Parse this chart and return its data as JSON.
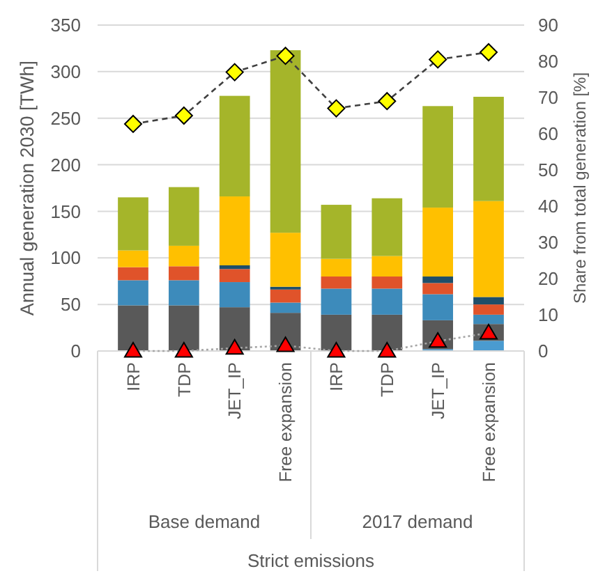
{
  "chart_data": {
    "type": "bar",
    "stacked": true,
    "ylabel": "Annual generation 2030 [TWh]",
    "y2label": "Share from total generation [%]",
    "categories": [
      "IRP",
      "TDP",
      "JET_IP",
      "Free expansion",
      "IRP",
      "TDP",
      "JET_IP",
      "Free expansion"
    ],
    "annotations": [
      "Base demand",
      "2017 demand",
      "Strict emissions"
    ],
    "ylim": [
      0,
      350
    ],
    "yticks": [
      0,
      50,
      100,
      150,
      200,
      250,
      300,
      350
    ],
    "y2lim": [
      0,
      90
    ],
    "y2ticks": [
      0,
      10,
      20,
      30,
      40,
      50,
      60,
      70,
      80,
      90
    ],
    "grid": "y",
    "series": [
      {
        "color": "#4a9bd0",
        "values": [
          0,
          0,
          null,
          null,
          0,
          0,
          2,
          11
        ]
      },
      {
        "color": "#595959",
        "values": [
          49,
          49,
          47,
          41,
          39,
          39,
          31,
          18
        ]
      },
      {
        "color": "#3d8bbb",
        "values": [
          27,
          27,
          27,
          11,
          28,
          28,
          28,
          10
        ]
      },
      {
        "color": "#e0532a",
        "values": [
          14,
          15,
          14,
          14,
          13,
          13,
          12,
          11
        ]
      },
      {
        "color": "#1f4e69",
        "values": [
          0,
          0,
          4,
          3,
          0,
          0,
          7,
          8
        ]
      },
      {
        "color": "#ffc000",
        "values": [
          18,
          22,
          74,
          58,
          19,
          22,
          74,
          103
        ]
      },
      {
        "color": "#a5b52a",
        "values": [
          57,
          63,
          108,
          196,
          58,
          62,
          109,
          112
        ]
      },
      {
        "type": "line",
        "axis": "y2",
        "color": "#ffff00",
        "marker": "diamond",
        "line_style": "dashed",
        "values": [
          62.7,
          65,
          77,
          81.5,
          67,
          69,
          80.5,
          82.5
        ]
      },
      {
        "type": "line",
        "axis": "y2",
        "color": "#ff0000",
        "marker": "triangle",
        "line_style": "dotted",
        "values": [
          0,
          0,
          0.8,
          1.5,
          0,
          0,
          2.7,
          5
        ]
      }
    ]
  }
}
